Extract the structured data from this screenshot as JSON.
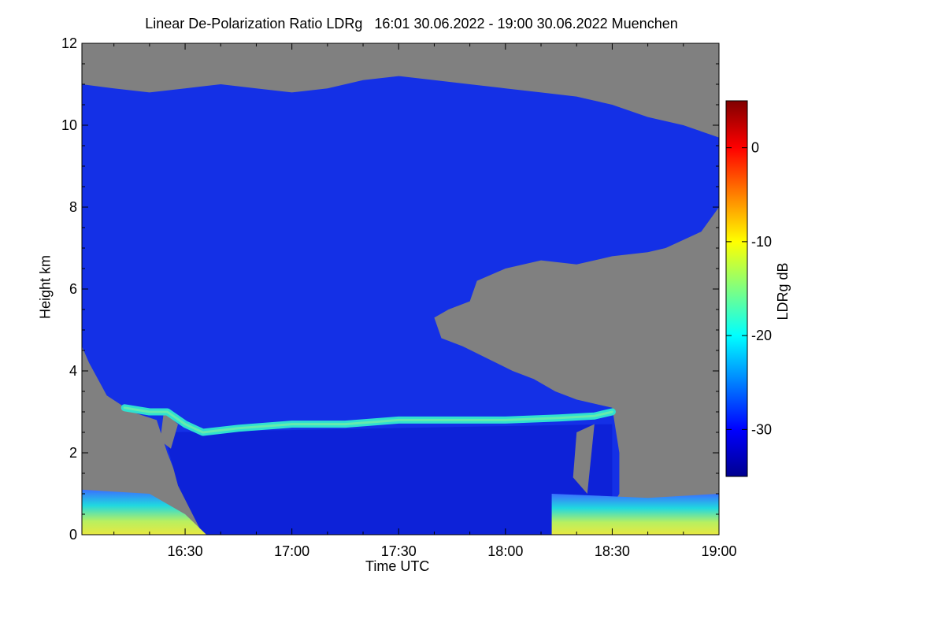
{
  "chart_data": {
    "type": "heatmap",
    "title": "Linear De-Polarization Ratio LDRg   16:01 30.06.2022 - 19:00 30.06.2022 Muenchen",
    "xlabel": "Time UTC",
    "ylabel": "Height km",
    "x_ticks": [
      "16:30",
      "17:00",
      "17:30",
      "18:00",
      "18:30",
      "19:00"
    ],
    "x_tick_minutes": [
      30,
      60,
      90,
      120,
      150,
      180
    ],
    "xlim_minutes": [
      1,
      180
    ],
    "y_ticks": [
      0,
      2,
      4,
      6,
      8,
      10,
      12
    ],
    "ylim": [
      0,
      12
    ],
    "colorbar": {
      "label": "LDRg dB",
      "range": [
        -35,
        5
      ],
      "ticks": [
        0,
        -10,
        -20,
        -30
      ],
      "colors": [
        "#00008f",
        "#0000ff",
        "#0080ff",
        "#00ffff",
        "#80ff80",
        "#ffff00",
        "#ff8000",
        "#ff0000",
        "#800000"
      ]
    },
    "colors": {
      "no_signal": "#808080",
      "cloud": "#1430e6",
      "melting_layer": "#30e0d0",
      "low_layer": "#c8e860"
    },
    "cloud_top_km": [
      [
        1,
        11.0
      ],
      [
        10,
        10.9
      ],
      [
        20,
        10.8
      ],
      [
        30,
        10.9
      ],
      [
        40,
        11.0
      ],
      [
        50,
        10.9
      ],
      [
        60,
        10.8
      ],
      [
        70,
        10.9
      ],
      [
        80,
        11.1
      ],
      [
        90,
        11.2
      ],
      [
        100,
        11.1
      ],
      [
        110,
        11.0
      ],
      [
        120,
        10.9
      ],
      [
        130,
        10.8
      ],
      [
        140,
        10.7
      ],
      [
        150,
        10.5
      ],
      [
        160,
        10.2
      ],
      [
        170,
        10.0
      ],
      [
        180,
        9.7
      ]
    ],
    "melting_layer_km": [
      [
        13,
        3.1
      ],
      [
        20,
        3.0
      ],
      [
        25,
        3.0
      ],
      [
        30,
        2.7
      ],
      [
        35,
        2.5
      ],
      [
        45,
        2.6
      ],
      [
        60,
        2.7
      ],
      [
        75,
        2.7
      ],
      [
        90,
        2.8
      ],
      [
        105,
        2.8
      ],
      [
        120,
        2.8
      ],
      [
        135,
        2.85
      ],
      [
        145,
        2.9
      ],
      [
        150,
        3.0
      ]
    ]
  }
}
